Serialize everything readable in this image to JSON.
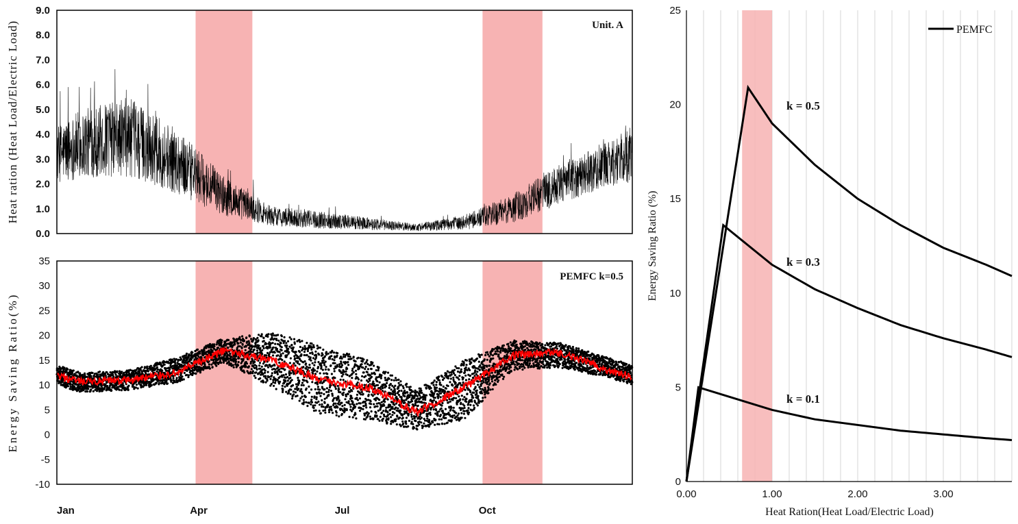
{
  "chart_data": [
    {
      "type": "line",
      "panel": "top-left",
      "title": "Unit. A",
      "ylabel": "Heat ration (Heat Load/Electric Load)",
      "ylim": [
        0,
        9
      ],
      "yticks": [
        "0.0",
        "1.0",
        "2.0",
        "3.0",
        "4.0",
        "5.0",
        "6.0",
        "7.0",
        "8.0",
        "9.0"
      ],
      "x_months": [
        "Jan",
        "Apr",
        "Jul",
        "Oct"
      ],
      "highlight_periods": [
        [
          "2023-03-30",
          "2023-05-05"
        ],
        [
          "2023-09-28",
          "2023-11-05"
        ]
      ],
      "highlight_color": "#f7b3b3",
      "series": [
        {
          "color": "#000000",
          "monthly_mean": [
            3.6,
            3.9,
            2.9,
            1.5,
            0.7,
            0.55,
            0.4,
            0.25,
            0.45,
            1.0,
            2.0,
            2.8
          ],
          "monthly_spread": [
            1.4,
            1.6,
            1.3,
            0.8,
            0.4,
            0.35,
            0.25,
            0.15,
            0.3,
            0.6,
            0.8,
            0.9
          ]
        }
      ]
    },
    {
      "type": "scatter",
      "panel": "bottom-left",
      "title": "PEMFC  k=0.5",
      "ylabel": "Energy Saving Ratio(%)",
      "ylim": [
        -10,
        35
      ],
      "yticks": [
        "-10",
        "-5",
        "0",
        "5",
        "10",
        "15",
        "20",
        "25",
        "30",
        "35"
      ],
      "x_months": [
        "Jan",
        "Apr",
        "Jul",
        "Oct"
      ],
      "highlight_periods": [
        [
          "2023-03-30",
          "2023-05-05"
        ],
        [
          "2023-09-28",
          "2023-11-05"
        ]
      ],
      "highlight_color": "#f7b3b3",
      "series": [
        {
          "kind": "scatter",
          "color": "#000000",
          "monthly_mean": [
            10.5,
            11.0,
            13.0,
            17.0,
            15.0,
            11.0,
            9.0,
            5.0,
            9.0,
            16.0,
            16.0,
            13.5
          ],
          "monthly_spread": [
            2.0,
            2.0,
            2.5,
            2.5,
            5.5,
            7.0,
            6.0,
            4.0,
            6.0,
            3.0,
            2.5,
            2.0
          ]
        },
        {
          "kind": "line",
          "color": "#ff0000",
          "monthly_mean": [
            10.5,
            11.0,
            12.5,
            17.0,
            15.0,
            11.0,
            9.5,
            4.5,
            9.5,
            16.0,
            16.5,
            13.0
          ]
        }
      ]
    },
    {
      "type": "line",
      "panel": "right",
      "xlabel": "Heat Ration(Heat Load/Electric Load)",
      "ylabel": "Energy Saving Ratio (%)",
      "xlim": [
        0,
        3.8
      ],
      "ylim": [
        0,
        25
      ],
      "xticks": [
        "0.00",
        "1.00",
        "2.00",
        "3.00"
      ],
      "yticks": [
        "0",
        "5",
        "10",
        "15",
        "20",
        "25"
      ],
      "grid_vertical": true,
      "legend": {
        "position": "top-right",
        "label": "PEMFC"
      },
      "highlight_x": [
        0.65,
        1.0
      ],
      "highlight_color": "#f7b3b3",
      "series": [
        {
          "name": "k = 0.5",
          "x": [
            0,
            0.72,
            1.0,
            1.5,
            2.0,
            2.5,
            3.0,
            3.5,
            3.8
          ],
          "y": [
            0,
            20.9,
            19.0,
            16.8,
            15.0,
            13.6,
            12.4,
            11.5,
            10.9
          ]
        },
        {
          "name": "k = 0.3",
          "x": [
            0,
            0.43,
            1.0,
            1.5,
            2.0,
            2.5,
            3.0,
            3.5,
            3.8
          ],
          "y": [
            0,
            13.6,
            11.5,
            10.2,
            9.2,
            8.3,
            7.6,
            7.0,
            6.6
          ]
        },
        {
          "name": "k = 0.1",
          "x": [
            0,
            0.14,
            1.0,
            1.5,
            2.0,
            2.5,
            3.0,
            3.5,
            3.8
          ],
          "y": [
            0,
            5.0,
            3.8,
            3.3,
            3.0,
            2.7,
            2.5,
            2.3,
            2.2
          ]
        }
      ]
    }
  ]
}
